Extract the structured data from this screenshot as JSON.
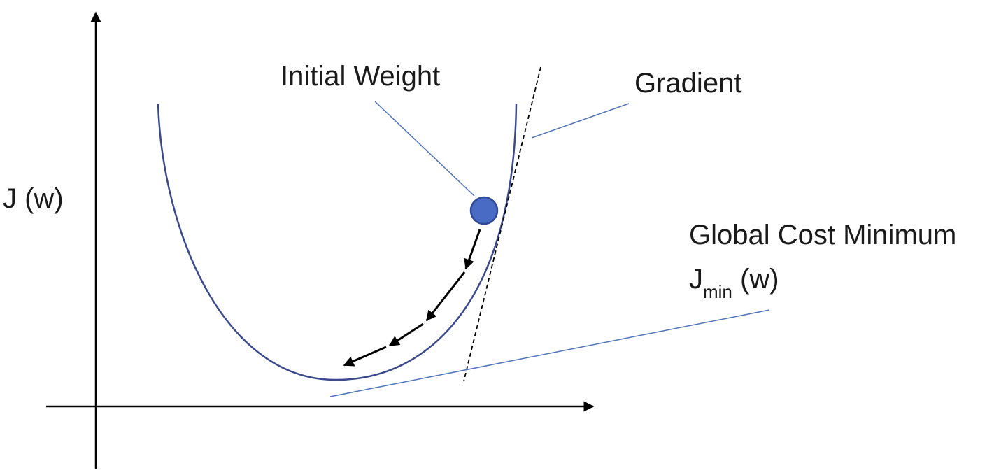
{
  "labels": {
    "initial_weight": "Initial Weight",
    "gradient": "Gradient",
    "y_axis": "J (w)",
    "global_cost_minimum": "Global Cost Minimum",
    "jmin_base": "J",
    "jmin_sub": "min",
    "jmin_tail": " (w)"
  },
  "colors": {
    "curve": "#3a4a8c",
    "point_fill": "#4a6bc4",
    "point_stroke": "#2f4a9a",
    "leader": "#4f73b8",
    "arrow": "#000000",
    "axis": "#000000"
  }
}
